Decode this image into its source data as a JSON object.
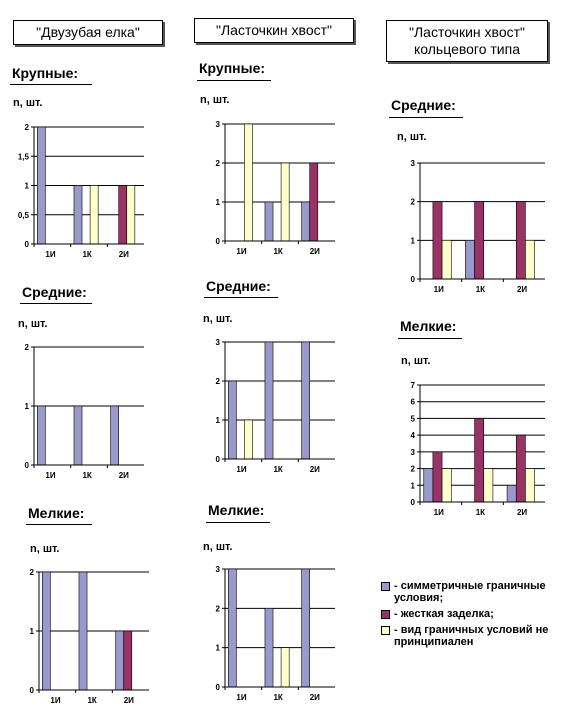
{
  "columns": [
    {
      "title": "\"Двузубая елка\""
    },
    {
      "title": "\"Ласточкин хвост\""
    },
    {
      "title": "\"Ласточкин хвост\"\nкольцевого типа"
    }
  ],
  "sections": {
    "c0_large": "Крупные:",
    "c0_medium": "Средние:",
    "c0_small": "Мелкие:",
    "c1_large": "Крупные:",
    "c1_medium": "Средние:",
    "c1_small": "Мелкие:",
    "c2_medium": "Средние:",
    "c2_small": "Мелкие:"
  },
  "unit_label": "n, шт.",
  "colors": {
    "symmetric": "#9999cc",
    "rigid": "#993366",
    "any": "#ffffcc"
  },
  "legend": [
    {
      "color": "#9999cc",
      "text": "- симметричные граничные условия;"
    },
    {
      "color": "#993366",
      "text": "- жесткая заделка;"
    },
    {
      "color": "#ffffcc",
      "text": "- вид граничных условий не принципиален"
    }
  ],
  "chart_data": [
    {
      "id": "c0_large",
      "type": "bar",
      "categories": [
        "1И",
        "1К",
        "2И"
      ],
      "ylim": [
        0,
        2
      ],
      "yticks": [
        "0",
        "0,5",
        "1",
        "1,5",
        "2"
      ],
      "series": [
        {
          "name": "- симметричные граничные условия;",
          "values": [
            2,
            1,
            0
          ]
        },
        {
          "name": "- жесткая заделка;",
          "values": [
            0,
            0,
            1
          ]
        },
        {
          "name": "- вид граничных условий не принципиален",
          "values": [
            0,
            1,
            1
          ]
        }
      ]
    },
    {
      "id": "c0_medium",
      "type": "bar",
      "categories": [
        "1И",
        "1К",
        "2И"
      ],
      "ylim": [
        0,
        2
      ],
      "yticks": [
        "0",
        "1",
        "2"
      ],
      "series": [
        {
          "name": "- симметричные граничные условия;",
          "values": [
            1,
            1,
            1
          ]
        },
        {
          "name": "- жесткая заделка;",
          "values": [
            0,
            0,
            0
          ]
        },
        {
          "name": "- вид граничных условий не принципиален",
          "values": [
            0,
            0,
            0
          ]
        }
      ]
    },
    {
      "id": "c0_small",
      "type": "bar",
      "categories": [
        "1И",
        "1К",
        "2И"
      ],
      "ylim": [
        0,
        2
      ],
      "yticks": [
        "0",
        "1",
        "2"
      ],
      "series": [
        {
          "name": "- симметричные граничные условия;",
          "values": [
            2,
            2,
            1
          ]
        },
        {
          "name": "- жесткая заделка;",
          "values": [
            0,
            0,
            1
          ]
        },
        {
          "name": "- вид граничных условий не принципиален",
          "values": [
            0,
            0,
            0
          ]
        }
      ]
    },
    {
      "id": "c1_large",
      "type": "bar",
      "categories": [
        "1И",
        "1К",
        "2И"
      ],
      "ylim": [
        0,
        3
      ],
      "yticks": [
        "0",
        "1",
        "2",
        "3"
      ],
      "series": [
        {
          "name": "- симметричные граничные условия;",
          "values": [
            0,
            1,
            1
          ]
        },
        {
          "name": "- жесткая заделка;",
          "values": [
            0,
            0,
            2
          ]
        },
        {
          "name": "- вид граничных условий не принципиален",
          "values": [
            3,
            2,
            0
          ]
        }
      ]
    },
    {
      "id": "c1_medium",
      "type": "bar",
      "categories": [
        "1И",
        "1К",
        "2И"
      ],
      "ylim": [
        0,
        3
      ],
      "yticks": [
        "0",
        "1",
        "2",
        "3"
      ],
      "series": [
        {
          "name": "- симметричные граничные условия;",
          "values": [
            2,
            3,
            3
          ]
        },
        {
          "name": "- жесткая заделка;",
          "values": [
            0,
            0,
            0
          ]
        },
        {
          "name": "- вид граничных условий не принципиален",
          "values": [
            1,
            0,
            0
          ]
        }
      ]
    },
    {
      "id": "c1_small",
      "type": "bar",
      "categories": [
        "1И",
        "1К",
        "2И"
      ],
      "ylim": [
        0,
        3
      ],
      "yticks": [
        "0",
        "1",
        "2",
        "3"
      ],
      "series": [
        {
          "name": "- симметричные граничные условия;",
          "values": [
            3,
            2,
            3
          ]
        },
        {
          "name": "- жесткая заделка;",
          "values": [
            0,
            0,
            0
          ]
        },
        {
          "name": "- вид граничных условий не принципиален",
          "values": [
            0,
            1,
            0
          ]
        }
      ]
    },
    {
      "id": "c2_medium",
      "type": "bar",
      "categories": [
        "1И",
        "1К",
        "2И"
      ],
      "ylim": [
        0,
        3
      ],
      "yticks": [
        "0",
        "1",
        "2",
        "3"
      ],
      "series": [
        {
          "name": "- симметричные граничные условия;",
          "values": [
            0,
            1,
            0
          ]
        },
        {
          "name": "- жесткая заделка;",
          "values": [
            2,
            2,
            2
          ]
        },
        {
          "name": "- вид граничных условий не принципиален",
          "values": [
            1,
            0,
            1
          ]
        }
      ]
    },
    {
      "id": "c2_small",
      "type": "bar",
      "categories": [
        "1И",
        "1К",
        "2И"
      ],
      "ylim": [
        0,
        7
      ],
      "yticks": [
        "0",
        "1",
        "2",
        "3",
        "4",
        "5",
        "6",
        "7"
      ],
      "series": [
        {
          "name": "- симметричные граничные условия;",
          "values": [
            2,
            0,
            1
          ]
        },
        {
          "name": "- жесткая заделка;",
          "values": [
            3,
            5,
            4
          ]
        },
        {
          "name": "- вид граничных условий не принципиален",
          "values": [
            2,
            2,
            2
          ]
        }
      ]
    }
  ]
}
